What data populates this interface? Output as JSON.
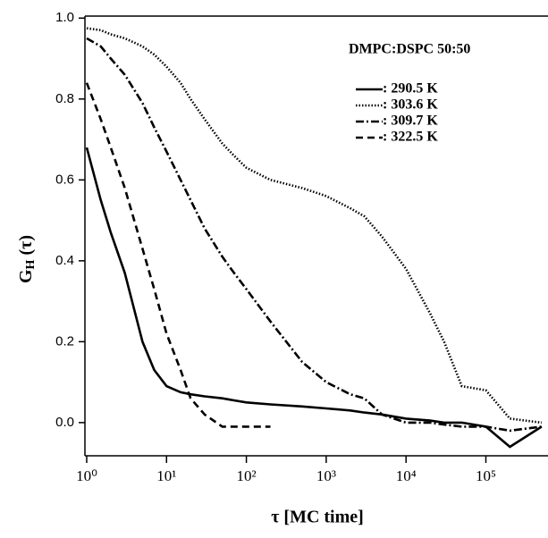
{
  "chart_data": {
    "type": "line",
    "ylabel": [
      "G",
      "H",
      "(τ)"
    ],
    "xlabel": "τ  [MC time]",
    "legend_title": "DMPC:DSPC 50:50",
    "legend_position": "upper right",
    "xscale": "log",
    "x": [
      1,
      1.5,
      2,
      3,
      5,
      7,
      10,
      15,
      20,
      30,
      50,
      70,
      100,
      200,
      500,
      1000,
      2000,
      3000,
      5000,
      10000,
      20000,
      30000,
      50000,
      100000,
      200000,
      500000
    ],
    "series": [
      {
        "name": ": 290.5 K",
        "color": "#000000",
        "dash": "solid",
        "values": [
          0.68,
          0.55,
          0.47,
          0.37,
          0.2,
          0.13,
          0.09,
          0.075,
          0.07,
          0.065,
          0.06,
          0.055,
          0.05,
          0.045,
          0.04,
          0.035,
          0.03,
          0.025,
          0.02,
          0.01,
          0.005,
          0.0,
          0.0,
          -0.01,
          -0.06,
          -0.01
        ]
      },
      {
        "name": ": 303.6 K",
        "color": "#000000",
        "dash": "dotted",
        "values": [
          0.975,
          0.97,
          0.96,
          0.95,
          0.93,
          0.91,
          0.88,
          0.84,
          0.8,
          0.75,
          0.69,
          0.66,
          0.63,
          0.6,
          0.58,
          0.56,
          0.53,
          0.51,
          0.46,
          0.38,
          0.27,
          0.2,
          0.09,
          0.08,
          0.01,
          0.0
        ]
      },
      {
        "name": ": 309.7 K",
        "color": "#000000",
        "dash": "dashdot",
        "values": [
          0.95,
          0.93,
          0.9,
          0.86,
          0.79,
          0.73,
          0.67,
          0.6,
          0.55,
          0.48,
          0.41,
          0.37,
          0.33,
          0.25,
          0.15,
          0.1,
          0.07,
          0.06,
          0.02,
          0.0,
          0.0,
          -0.005,
          -0.01,
          -0.01,
          -0.02,
          -0.01
        ]
      },
      {
        "name": ": 322.5 K",
        "color": "#000000",
        "dash": "dashed",
        "values": [
          0.84,
          0.75,
          0.68,
          0.58,
          0.43,
          0.33,
          0.22,
          0.13,
          0.06,
          0.02,
          -0.01,
          -0.01,
          -0.01,
          -0.01,
          null,
          null,
          null,
          null,
          null,
          null,
          null,
          null,
          null,
          null,
          null,
          null
        ]
      }
    ],
    "xlim": [
      0.95,
      600000
    ],
    "ylim": [
      -0.082,
      1.005
    ],
    "xticks": [
      {
        "value": 1,
        "label": "10⁰"
      },
      {
        "value": 10,
        "label": "10¹"
      },
      {
        "value": 100,
        "label": "10²"
      },
      {
        "value": 1000,
        "label": "10³"
      },
      {
        "value": 10000,
        "label": "10⁴"
      },
      {
        "value": 100000,
        "label": "10⁵"
      }
    ],
    "yticks": [
      {
        "value": 0,
        "label": "0.0"
      },
      0.2,
      0.4,
      0.6,
      0.8,
      {
        "value": 1,
        "label": "1.0"
      }
    ]
  }
}
